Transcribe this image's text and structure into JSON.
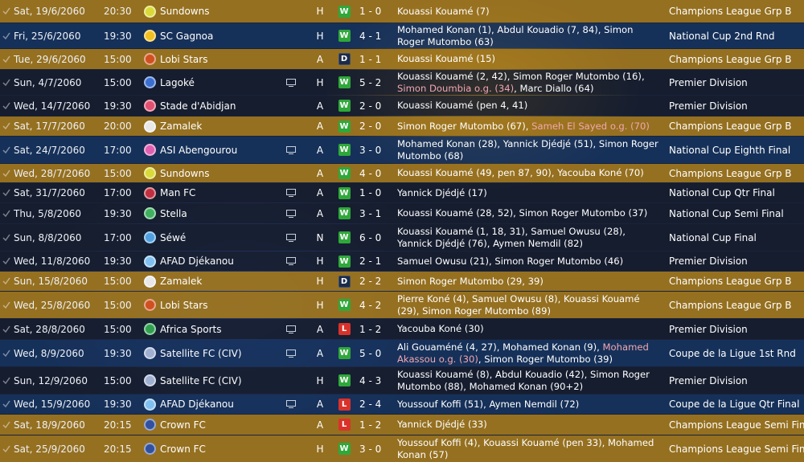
{
  "colors": {
    "win": "#2fa83a",
    "draw": "#1b2a48",
    "loss": "#d9322a",
    "own_goal": "#f2a7b0"
  },
  "matches": [
    {
      "date": "Sat, 19/6/2060",
      "time": "20:30",
      "opponent": "Sundowns",
      "crest_color": "#d9d93a",
      "tv": false,
      "venue": "H",
      "result": "W",
      "score": "1 - 0",
      "scorers": [
        {
          "t": "Kouassi Kouamé (7)",
          "og": false
        }
      ],
      "competition": "Champions League Grp B",
      "style": "gold"
    },
    {
      "date": "Fri, 25/6/2060",
      "time": "19:30",
      "opponent": "SC Gagnoa",
      "crest_color": "#f0c020",
      "tv": false,
      "venue": "H",
      "result": "W",
      "score": "4 - 1",
      "scorers": [
        {
          "t": "Mohamed Konan (1), Abdul Kouadio (7, 84), Simon Roger Mutombo (63)",
          "og": false
        }
      ],
      "competition": "National Cup 2nd Rnd",
      "style": "blue"
    },
    {
      "date": "Tue, 29/6/2060",
      "time": "15:00",
      "opponent": "Lobi Stars",
      "crest_color": "#d05020",
      "tv": false,
      "venue": "A",
      "result": "D",
      "score": "1 - 1",
      "scorers": [
        {
          "t": "Kouassi Kouamé (15)",
          "og": false
        }
      ],
      "competition": "Champions League Grp B",
      "style": "gold"
    },
    {
      "date": "Sun, 4/7/2060",
      "time": "15:00",
      "opponent": "Lagoké",
      "crest_color": "#3a6fd0",
      "tv": true,
      "venue": "H",
      "result": "W",
      "score": "5 - 2",
      "scorers": [
        {
          "t": "Kouassi Kouamé (2, 42), Simon Roger Mutombo (16), ",
          "og": false
        },
        {
          "t": "Simon Doumbia o.g. (34)",
          "og": true
        },
        {
          "t": ", Marc Diallo (64)",
          "og": false
        }
      ],
      "competition": "Premier Division",
      "style": "dark"
    },
    {
      "date": "Wed, 14/7/2060",
      "time": "19:30",
      "opponent": "Stade d'Abidjan",
      "crest_color": "#e05070",
      "tv": false,
      "venue": "A",
      "result": "W",
      "score": "2 - 0",
      "scorers": [
        {
          "t": "Kouassi Kouamé (pen 4, 41)",
          "og": false
        }
      ],
      "competition": "Premier Division",
      "style": "dark"
    },
    {
      "date": "Sat, 17/7/2060",
      "time": "20:00",
      "opponent": "Zamalek",
      "crest_color": "#e8e8e8",
      "tv": false,
      "venue": "A",
      "result": "W",
      "score": "2 - 0",
      "scorers": [
        {
          "t": "Simon Roger Mutombo (67), ",
          "og": false
        },
        {
          "t": "Sameh El Sayed o.g. (70)",
          "og": true
        }
      ],
      "competition": "Champions League Grp B",
      "style": "gold"
    },
    {
      "date": "Sat, 24/7/2060",
      "time": "17:00",
      "opponent": "ASI Abengourou",
      "crest_color": "#e060b0",
      "tv": true,
      "venue": "A",
      "result": "W",
      "score": "3 - 0",
      "scorers": [
        {
          "t": "Mohamed Konan (28), Yannick Djédjé (51), Simon Roger Mutombo (68)",
          "og": false
        }
      ],
      "competition": "National Cup Eighth Final",
      "style": "blue"
    },
    {
      "date": "Wed, 28/7/2060",
      "time": "15:00",
      "opponent": "Sundowns",
      "crest_color": "#d9d93a",
      "tv": false,
      "venue": "A",
      "result": "W",
      "score": "4 - 0",
      "scorers": [
        {
          "t": "Kouassi Kouamé (49, pen 87, 90), Yacouba Koné (70)",
          "og": false
        }
      ],
      "competition": "Champions League Grp B",
      "style": "gold"
    },
    {
      "date": "Sat, 31/7/2060",
      "time": "17:00",
      "opponent": "Man FC",
      "crest_color": "#c03040",
      "tv": true,
      "venue": "A",
      "result": "W",
      "score": "1 - 0",
      "scorers": [
        {
          "t": "Yannick Djédjé (17)",
          "og": false
        }
      ],
      "competition": "National Cup Qtr Final",
      "style": "dark"
    },
    {
      "date": "Thu, 5/8/2060",
      "time": "19:30",
      "opponent": "Stella",
      "crest_color": "#40b060",
      "tv": true,
      "venue": "A",
      "result": "W",
      "score": "3 - 1",
      "scorers": [
        {
          "t": "Kouassi Kouamé (28, 52), Simon Roger Mutombo (37)",
          "og": false
        }
      ],
      "competition": "National Cup Semi Final",
      "style": "dark"
    },
    {
      "date": "Sun, 8/8/2060",
      "time": "17:00",
      "opponent": "Séwé",
      "crest_color": "#50a0e0",
      "tv": true,
      "venue": "N",
      "result": "W",
      "score": "6 - 0",
      "scorers": [
        {
          "t": "Kouassi Kouamé (1, 18, 31), Samuel Owusu (28), Yannick Djédjé (76), Aymen Nemdil (82)",
          "og": false
        }
      ],
      "competition": "National Cup Final",
      "style": "dark"
    },
    {
      "date": "Wed, 11/8/2060",
      "time": "19:30",
      "opponent": "AFAD Djékanou",
      "crest_color": "#80c0f0",
      "tv": true,
      "venue": "H",
      "result": "W",
      "score": "2 - 1",
      "scorers": [
        {
          "t": "Samuel Owusu (21), Simon Roger Mutombo (46)",
          "og": false
        }
      ],
      "competition": "Premier Division",
      "style": "dark"
    },
    {
      "date": "Sun, 15/8/2060",
      "time": "15:00",
      "opponent": "Zamalek",
      "crest_color": "#e8e8e8",
      "tv": false,
      "venue": "H",
      "result": "D",
      "score": "2 - 2",
      "scorers": [
        {
          "t": "Simon Roger Mutombo (29, 39)",
          "og": false
        }
      ],
      "competition": "Champions League Grp B",
      "style": "gold"
    },
    {
      "date": "Wed, 25/8/2060",
      "time": "15:00",
      "opponent": "Lobi Stars",
      "crest_color": "#d05020",
      "tv": false,
      "venue": "H",
      "result": "W",
      "score": "4 - 2",
      "scorers": [
        {
          "t": "Pierre Koné (4), Samuel Owusu (8), Kouassi Kouamé (29), Simon Roger Mutombo (89)",
          "og": false
        }
      ],
      "competition": "Champions League Grp B",
      "style": "gold"
    },
    {
      "date": "Sat, 28/8/2060",
      "time": "15:00",
      "opponent": "Africa Sports",
      "crest_color": "#30a050",
      "tv": true,
      "venue": "A",
      "result": "L",
      "score": "1 - 2",
      "scorers": [
        {
          "t": "Yacouba Koné (30)",
          "og": false
        }
      ],
      "competition": "Premier Division",
      "style": "dark"
    },
    {
      "date": "Wed, 8/9/2060",
      "time": "19:30",
      "opponent": "Satellite FC (CIV)",
      "crest_color": "#a0b0d0",
      "tv": true,
      "venue": "A",
      "result": "W",
      "score": "5 - 0",
      "scorers": [
        {
          "t": "Ali Gouaméné (4, 27), Mohamed Konan (9), ",
          "og": false
        },
        {
          "t": "Mohamed Akassou o.g. (30)",
          "og": true
        },
        {
          "t": ", Simon Roger Mutombo (39)",
          "og": false
        }
      ],
      "competition": "Coupe de la Ligue 1st Rnd",
      "style": "blue"
    },
    {
      "date": "Sun, 12/9/2060",
      "time": "15:00",
      "opponent": "Satellite FC (CIV)",
      "crest_color": "#a0b0d0",
      "tv": false,
      "venue": "H",
      "result": "W",
      "score": "4 - 3",
      "scorers": [
        {
          "t": "Kouassi Kouamé (8), Abdul Kouadio (42), Simon Roger Mutombo (88), Mohamed Konan (90+2)",
          "og": false
        }
      ],
      "competition": "Premier Division",
      "style": "dark"
    },
    {
      "date": "Wed, 15/9/2060",
      "time": "19:30",
      "opponent": "AFAD Djékanou",
      "crest_color": "#80c0f0",
      "tv": true,
      "venue": "A",
      "result": "L",
      "score": "2 - 4",
      "scorers": [
        {
          "t": "Youssouf Koffi (51), Aymen Nemdil (72)",
          "og": false
        }
      ],
      "competition": "Coupe de la Ligue Qtr Final",
      "style": "blue"
    },
    {
      "date": "Sat, 18/9/2060",
      "time": "20:15",
      "opponent": "Crown FC",
      "crest_color": "#3050a0",
      "tv": false,
      "venue": "A",
      "result": "L",
      "score": "1 - 2",
      "scorers": [
        {
          "t": "Yannick Djédjé (33)",
          "og": false
        }
      ],
      "competition": "Champions League Semi Fin...",
      "style": "gold"
    },
    {
      "date": "Sat, 25/9/2060",
      "time": "20:15",
      "opponent": "Crown FC",
      "crest_color": "#3050a0",
      "tv": false,
      "venue": "H",
      "result": "W",
      "score": "3 - 0",
      "scorers": [
        {
          "t": "Youssouf Koffi (4), Kouassi Kouamé (pen 33), Mohamed Konan (57)",
          "og": false
        }
      ],
      "competition": "Champions League Semi Fin...",
      "style": "gold"
    }
  ]
}
